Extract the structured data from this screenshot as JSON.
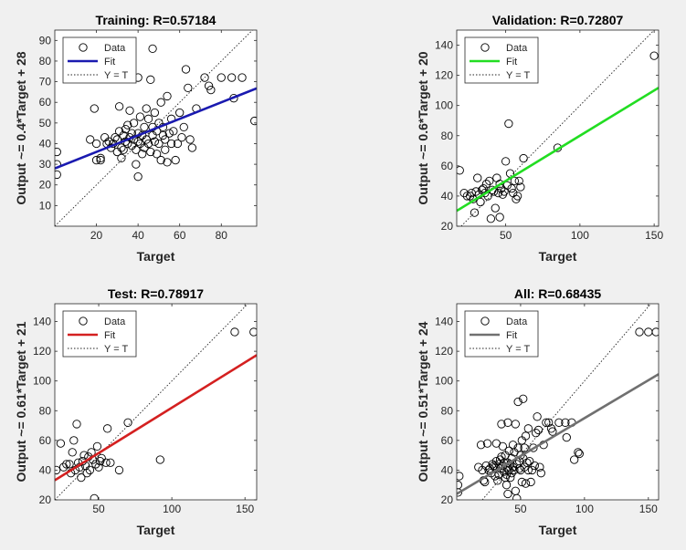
{
  "chart_data": [
    {
      "type": "scatter",
      "title": "Training: R=0.57184",
      "xlabel": "Target",
      "ylabel": "Output ~= 0.4*Target + 28",
      "xlim": [
        0,
        97
      ],
      "ylim": [
        0,
        95
      ],
      "xticks": [
        20,
        40,
        60,
        80
      ],
      "yticks": [
        10,
        20,
        30,
        40,
        50,
        60,
        70,
        80,
        90
      ],
      "fit_color": "#1a1ab0",
      "fit": {
        "slope": 0.4,
        "intercept": 28
      },
      "legend": {
        "position": "top-left",
        "items": [
          "Data",
          "Fit",
          "Y = T"
        ]
      },
      "series": [
        {
          "name": "Data",
          "points": [
            [
              1,
              25
            ],
            [
              1,
              30
            ],
            [
              1,
              36
            ],
            [
              17,
              42
            ],
            [
              19,
              57
            ],
            [
              20,
              40
            ],
            [
              20,
              32
            ],
            [
              22,
              33
            ],
            [
              22,
              32
            ],
            [
              24,
              43
            ],
            [
              25,
              40
            ],
            [
              26,
              41
            ],
            [
              27,
              38
            ],
            [
              28,
              40
            ],
            [
              29,
              43
            ],
            [
              30,
              42
            ],
            [
              30,
              36
            ],
            [
              31,
              46
            ],
            [
              31,
              58
            ],
            [
              32,
              33
            ],
            [
              32,
              38
            ],
            [
              33,
              44
            ],
            [
              33,
              37
            ],
            [
              34,
              47
            ],
            [
              34,
              41
            ],
            [
              35,
              49
            ],
            [
              35,
              40
            ],
            [
              36,
              43
            ],
            [
              36,
              56
            ],
            [
              37,
              39
            ],
            [
              37,
              45
            ],
            [
              38,
              50
            ],
            [
              38,
              42
            ],
            [
              39,
              30
            ],
            [
              39,
              37
            ],
            [
              40,
              41
            ],
            [
              40,
              45
            ],
            [
              40,
              72
            ],
            [
              40,
              24
            ],
            [
              41,
              40
            ],
            [
              41,
              53
            ],
            [
              42,
              44
            ],
            [
              42,
              35
            ],
            [
              43,
              48
            ],
            [
              43,
              38
            ],
            [
              44,
              57
            ],
            [
              44,
              42
            ],
            [
              45,
              52
            ],
            [
              45,
              40
            ],
            [
              46,
              71
            ],
            [
              46,
              36
            ],
            [
              47,
              44
            ],
            [
              47,
              48
            ],
            [
              47,
              86
            ],
            [
              48,
              55
            ],
            [
              48,
              41
            ],
            [
              49,
              46
            ],
            [
              49,
              35
            ],
            [
              50,
              50
            ],
            [
              50,
              40
            ],
            [
              51,
              60
            ],
            [
              51,
              32
            ],
            [
              52,
              44
            ],
            [
              52,
              48
            ],
            [
              53,
              42
            ],
            [
              53,
              37
            ],
            [
              54,
              63
            ],
            [
              54,
              31
            ],
            [
              55,
              45
            ],
            [
              56,
              40
            ],
            [
              56,
              52
            ],
            [
              57,
              46
            ],
            [
              58,
              32
            ],
            [
              59,
              40
            ],
            [
              60,
              55
            ],
            [
              61,
              43
            ],
            [
              62,
              48
            ],
            [
              63,
              76
            ],
            [
              64,
              67
            ],
            [
              65,
              42
            ],
            [
              66,
              38
            ],
            [
              68,
              57
            ],
            [
              72,
              72
            ],
            [
              74,
              68
            ],
            [
              75,
              66
            ],
            [
              80,
              72
            ],
            [
              85,
              72
            ],
            [
              86,
              62
            ],
            [
              90,
              72
            ],
            [
              96,
              51
            ]
          ]
        }
      ]
    },
    {
      "type": "scatter",
      "title": "Validation: R=0.72807",
      "xlabel": "Target",
      "ylabel": "Output ~= 0.6*Target + 20",
      "xlim": [
        17,
        153
      ],
      "ylim": [
        20,
        150
      ],
      "xticks": [
        50,
        100,
        150
      ],
      "yticks": [
        20,
        40,
        60,
        80,
        100,
        120,
        140
      ],
      "fit_color": "#22dd22",
      "fit": {
        "slope": 0.6,
        "intercept": 20
      },
      "legend": {
        "position": "top-left",
        "items": [
          "Data",
          "Fit",
          "Y = T"
        ]
      },
      "series": [
        {
          "name": "Data",
          "points": [
            [
              19,
              57
            ],
            [
              22,
              42
            ],
            [
              24,
              40
            ],
            [
              26,
              40
            ],
            [
              27,
              42
            ],
            [
              28,
              38
            ],
            [
              29,
              29
            ],
            [
              30,
              43
            ],
            [
              31,
              52
            ],
            [
              32,
              41
            ],
            [
              33,
              36
            ],
            [
              34,
              44
            ],
            [
              35,
              45
            ],
            [
              36,
              42
            ],
            [
              37,
              48
            ],
            [
              38,
              40
            ],
            [
              39,
              50
            ],
            [
              40,
              25
            ],
            [
              41,
              44
            ],
            [
              42,
              43
            ],
            [
              43,
              32
            ],
            [
              44,
              52
            ],
            [
              45,
              42
            ],
            [
              46,
              26
            ],
            [
              46,
              48
            ],
            [
              47,
              45
            ],
            [
              48,
              41
            ],
            [
              49,
              43
            ],
            [
              50,
              63
            ],
            [
              51,
              47
            ],
            [
              52,
              88
            ],
            [
              53,
              55
            ],
            [
              54,
              45
            ],
            [
              55,
              42
            ],
            [
              56,
              50
            ],
            [
              57,
              38
            ],
            [
              58,
              40
            ],
            [
              59,
              50
            ],
            [
              60,
              46
            ],
            [
              62,
              65
            ],
            [
              85,
              72
            ],
            [
              150,
              133
            ]
          ]
        }
      ]
    },
    {
      "type": "scatter",
      "title": "Test: R=0.78917",
      "xlabel": "Target",
      "ylabel": "Output ~= 0.61*Target + 21",
      "xlim": [
        20,
        158
      ],
      "ylim": [
        20,
        152
      ],
      "xticks": [
        50,
        100,
        150
      ],
      "yticks": [
        20,
        40,
        60,
        80,
        100,
        120,
        140
      ],
      "fit_color": "#d42020",
      "fit": {
        "slope": 0.61,
        "intercept": 21
      },
      "legend": {
        "position": "top-left",
        "items": [
          "Data",
          "Fit",
          "Y = T"
        ]
      },
      "series": [
        {
          "name": "Data",
          "points": [
            [
              21,
              40
            ],
            [
              24,
              58
            ],
            [
              26,
              42
            ],
            [
              28,
              44
            ],
            [
              30,
              44
            ],
            [
              31,
              38
            ],
            [
              32,
              52
            ],
            [
              33,
              60
            ],
            [
              34,
              40
            ],
            [
              35,
              71
            ],
            [
              36,
              45
            ],
            [
              37,
              42
            ],
            [
              38,
              35
            ],
            [
              39,
              46
            ],
            [
              40,
              50
            ],
            [
              41,
              43
            ],
            [
              42,
              38
            ],
            [
              43,
              49
            ],
            [
              44,
              40
            ],
            [
              45,
              52
            ],
            [
              46,
              47
            ],
            [
              47,
              21
            ],
            [
              48,
              44
            ],
            [
              49,
              56
            ],
            [
              50,
              42
            ],
            [
              51,
              46
            ],
            [
              52,
              48
            ],
            [
              55,
              45
            ],
            [
              56,
              68
            ],
            [
              58,
              45
            ],
            [
              64,
              40
            ],
            [
              70,
              72
            ],
            [
              92,
              47
            ],
            [
              143,
              133
            ],
            [
              156,
              133
            ]
          ]
        }
      ]
    },
    {
      "type": "scatter",
      "title": "All: R=0.68435",
      "xlabel": "Target",
      "ylabel": "Output ~= 0.51*Target + 24",
      "xlim": [
        0,
        158
      ],
      "ylim": [
        20,
        152
      ],
      "xticks": [
        50,
        100,
        150
      ],
      "yticks": [
        20,
        40,
        60,
        80,
        100,
        120,
        140
      ],
      "fit_color": "#707070",
      "fit": {
        "slope": 0.51,
        "intercept": 24
      },
      "legend": {
        "position": "top-left",
        "items": [
          "Data",
          "Fit",
          "Y = T"
        ]
      },
      "series": [
        {
          "name": "Data",
          "points": [
            [
              1,
              25
            ],
            [
              1,
              30
            ],
            [
              2,
              36
            ],
            [
              17,
              42
            ],
            [
              19,
              57
            ],
            [
              20,
              40
            ],
            [
              21,
              33
            ],
            [
              22,
              32
            ],
            [
              23,
              43
            ],
            [
              24,
              58
            ],
            [
              25,
              40
            ],
            [
              26,
              41
            ],
            [
              27,
              38
            ],
            [
              28,
              44
            ],
            [
              29,
              43
            ],
            [
              30,
              42
            ],
            [
              30,
              36
            ],
            [
              31,
              46
            ],
            [
              31,
              58
            ],
            [
              32,
              33
            ],
            [
              33,
              44
            ],
            [
              33,
              37
            ],
            [
              34,
              47
            ],
            [
              34,
              41
            ],
            [
              35,
              49
            ],
            [
              35,
              71
            ],
            [
              36,
              43
            ],
            [
              36,
              56
            ],
            [
              37,
              39
            ],
            [
              37,
              45
            ],
            [
              38,
              50
            ],
            [
              38,
              35
            ],
            [
              39,
              30
            ],
            [
              39,
              37
            ],
            [
              40,
              41
            ],
            [
              40,
              45
            ],
            [
              40,
              72
            ],
            [
              40,
              24
            ],
            [
              41,
              40
            ],
            [
              41,
              53
            ],
            [
              42,
              44
            ],
            [
              42,
              35
            ],
            [
              43,
              48
            ],
            [
              43,
              38
            ],
            [
              44,
              57
            ],
            [
              44,
              42
            ],
            [
              45,
              52
            ],
            [
              45,
              40
            ],
            [
              46,
              71
            ],
            [
              46,
              26
            ],
            [
              47,
              44
            ],
            [
              47,
              21
            ],
            [
              48,
              86
            ],
            [
              48,
              55
            ],
            [
              49,
              41
            ],
            [
              49,
              46
            ],
            [
              50,
              50
            ],
            [
              50,
              40
            ],
            [
              51,
              60
            ],
            [
              51,
              32
            ],
            [
              52,
              88
            ],
            [
              52,
              48
            ],
            [
              53,
              42
            ],
            [
              53,
              55
            ],
            [
              54,
              63
            ],
            [
              54,
              31
            ],
            [
              55,
              45
            ],
            [
              56,
              40
            ],
            [
              56,
              68
            ],
            [
              57,
              46
            ],
            [
              58,
              32
            ],
            [
              59,
              40
            ],
            [
              60,
              55
            ],
            [
              61,
              43
            ],
            [
              62,
              65
            ],
            [
              63,
              76
            ],
            [
              64,
              67
            ],
            [
              65,
              42
            ],
            [
              66,
              38
            ],
            [
              68,
              57
            ],
            [
              70,
              72
            ],
            [
              72,
              72
            ],
            [
              74,
              68
            ],
            [
              75,
              66
            ],
            [
              80,
              72
            ],
            [
              85,
              72
            ],
            [
              86,
              62
            ],
            [
              90,
              72
            ],
            [
              92,
              47
            ],
            [
              95,
              52
            ],
            [
              96,
              51
            ],
            [
              143,
              133
            ],
            [
              150,
              133
            ],
            [
              156,
              133
            ]
          ]
        }
      ]
    }
  ]
}
